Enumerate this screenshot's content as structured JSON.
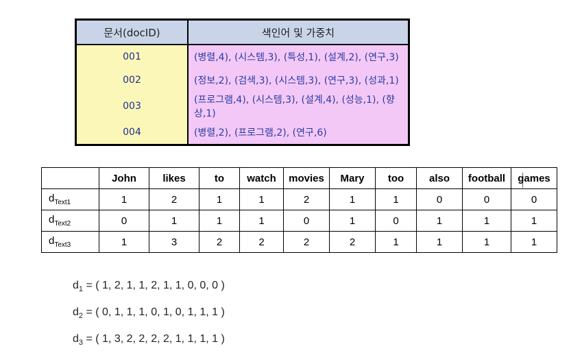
{
  "index_table": {
    "header_doc": "문서(docID)",
    "header_terms": "색인어 및 가중치",
    "rows": [
      {
        "doc": "001",
        "terms": "(병렬,4), (시스템,3), (특성,1), (설계,2), (연구,3)"
      },
      {
        "doc": "002",
        "terms": "(정보,2), (검색,3), (시스템,3), (연구,3), (성과,1)"
      },
      {
        "doc": "003",
        "terms": "(프로그램,4), (시스템,3), (설계,4), (성능,1), (향상,1)"
      },
      {
        "doc": "004",
        "terms": "(병렬,2), (프로그램,2), (연구,6)"
      }
    ]
  },
  "matrix": {
    "columns": [
      "John",
      "likes",
      "to",
      "watch",
      "movies",
      "Mary",
      "too",
      "also",
      "football",
      "games"
    ],
    "rows": [
      {
        "label_main": "d",
        "label_sub": "Text1",
        "values": [
          "1",
          "2",
          "1",
          "1",
          "2",
          "1",
          "1",
          "0",
          "0",
          "0"
        ]
      },
      {
        "label_main": "d",
        "label_sub": "Text2",
        "values": [
          "0",
          "1",
          "1",
          "1",
          "0",
          "1",
          "0",
          "1",
          "1",
          "1"
        ]
      },
      {
        "label_main": "d",
        "label_sub": "Text3",
        "values": [
          "1",
          "3",
          "2",
          "2",
          "2",
          "2",
          "1",
          "1",
          "1",
          "1"
        ]
      }
    ]
  },
  "vectors": [
    {
      "main": "d",
      "sub": "1",
      "rest": " = ( 1, 2, 1, 1, 2, 1, 1, 0, 0, 0 )"
    },
    {
      "main": "d",
      "sub": "2",
      "rest": " = ( 0, 1, 1, 1, 0, 1, 0, 1, 1, 1 )"
    },
    {
      "main": "d",
      "sub": "3",
      "rest": " = ( 1, 3, 2, 2, 2, 2, 1, 1, 1, 1 )"
    }
  ]
}
